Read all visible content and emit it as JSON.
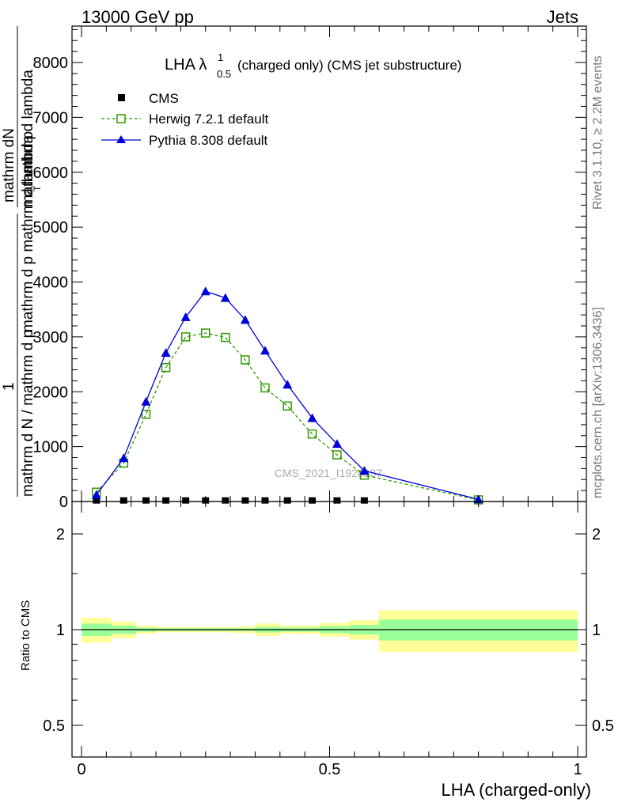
{
  "header": {
    "left": "13000 GeV pp",
    "right": "Jets"
  },
  "side": {
    "rivet": "Rivet 3.1.10, ≥ 2.2M events",
    "mcplots": "mcplots.cern.ch [arXiv:1306.3436]"
  },
  "watermark": "CMS_2021_I1920187",
  "colors": {
    "cms": "#000000",
    "herwig": "#339900",
    "pythia": "#0000dd",
    "band_inner": "#99ff99",
    "band_outer": "#ffff99"
  },
  "chart_data": [
    {
      "type": "line",
      "title_main": "LHA λ",
      "title_sup": "1",
      "title_sub": "0.5",
      "title_rest": "(charged only) (CMS jet substructure)",
      "ylabel_top_num": "mathrm dN",
      "ylabel_top_den": "mathrm d p_T mathrm d lambda",
      "ylabel_top_den_prefix": "mathrm d p",
      "ylabel_top_den_sub": "T",
      "ylabel_top_den_suffix": "mathrm d lambda",
      "ylabel_one": "1",
      "ylabel_bottom": "mathrm d N / mathrm d p mathrm d p mathrm d lambda",
      "ylabel_bottom_a": "mathrm d N / mathrm d p",
      "ylabel_bottom_b": "mathrm d p mathrm d lambda",
      "ylim": [
        0,
        8700
      ],
      "xlim": [
        -0.02,
        1.0
      ],
      "yticks": [
        0,
        1000,
        2000,
        3000,
        4000,
        5000,
        6000,
        7000,
        8000
      ],
      "yticklabels": [
        "0",
        "1000",
        "2000",
        "3000",
        "4000",
        "5000",
        "6000",
        "7000",
        "8000"
      ],
      "legend_position": "top-left",
      "series": [
        {
          "name": "CMS",
          "x": [
            0.03,
            0.085,
            0.13,
            0.17,
            0.21,
            0.25,
            0.29,
            0.33,
            0.37,
            0.415,
            0.465,
            0.515,
            0.57
          ],
          "y": [
            5,
            5,
            5,
            5,
            5,
            5,
            5,
            5,
            5,
            5,
            5,
            5,
            5
          ]
        },
        {
          "name": "Herwig 7.2.1 default",
          "x": [
            0.03,
            0.085,
            0.13,
            0.17,
            0.21,
            0.25,
            0.29,
            0.33,
            0.37,
            0.415,
            0.465,
            0.515,
            0.57,
            0.8
          ],
          "y": [
            170,
            700,
            1590,
            2440,
            3000,
            3070,
            2990,
            2580,
            2070,
            1740,
            1230,
            850,
            480,
            30
          ]
        },
        {
          "name": "Pythia 8.308 default",
          "x": [
            0.03,
            0.085,
            0.13,
            0.17,
            0.21,
            0.25,
            0.29,
            0.33,
            0.37,
            0.415,
            0.465,
            0.515,
            0.57,
            0.8
          ],
          "y": [
            120,
            790,
            1820,
            2710,
            3360,
            3830,
            3710,
            3310,
            2750,
            2130,
            1520,
            1050,
            560,
            40
          ]
        }
      ]
    },
    {
      "type": "area",
      "ylabel": "Ratio to CMS",
      "xlabel": "LHA (charged-only)",
      "log_y": true,
      "ylim": [
        0.4,
        2.4
      ],
      "yticks": [
        0.5,
        1,
        2
      ],
      "yticklabels": [
        "0.5",
        "1",
        "2"
      ],
      "xticks": [
        0,
        0.5,
        1
      ],
      "xticklabels": [
        "0",
        "0.5",
        "1"
      ],
      "bins": [
        {
          "x0": 0.0,
          "x1": 0.06,
          "inner": [
            0.955,
            1.045
          ],
          "outer": [
            0.91,
            1.09
          ]
        },
        {
          "x0": 0.06,
          "x1": 0.11,
          "inner": [
            0.97,
            1.03
          ],
          "outer": [
            0.94,
            1.06
          ]
        },
        {
          "x0": 0.11,
          "x1": 0.15,
          "inner": [
            0.985,
            1.015
          ],
          "outer": [
            0.97,
            1.03
          ]
        },
        {
          "x0": 0.15,
          "x1": 0.19,
          "inner": [
            0.99,
            1.01
          ],
          "outer": [
            0.98,
            1.02
          ]
        },
        {
          "x0": 0.19,
          "x1": 0.23,
          "inner": [
            0.99,
            1.01
          ],
          "outer": [
            0.98,
            1.02
          ]
        },
        {
          "x0": 0.23,
          "x1": 0.27,
          "inner": [
            0.99,
            1.01
          ],
          "outer": [
            0.98,
            1.02
          ]
        },
        {
          "x0": 0.27,
          "x1": 0.31,
          "inner": [
            0.99,
            1.01
          ],
          "outer": [
            0.98,
            1.02
          ]
        },
        {
          "x0": 0.31,
          "x1": 0.35,
          "inner": [
            0.99,
            1.01
          ],
          "outer": [
            0.975,
            1.025
          ]
        },
        {
          "x0": 0.35,
          "x1": 0.4,
          "inner": [
            0.98,
            1.02
          ],
          "outer": [
            0.955,
            1.045
          ]
        },
        {
          "x0": 0.4,
          "x1": 0.43,
          "inner": [
            0.985,
            1.015
          ],
          "outer": [
            0.97,
            1.03
          ]
        },
        {
          "x0": 0.43,
          "x1": 0.48,
          "inner": [
            0.985,
            1.015
          ],
          "outer": [
            0.97,
            1.03
          ]
        },
        {
          "x0": 0.48,
          "x1": 0.54,
          "inner": [
            0.975,
            1.025
          ],
          "outer": [
            0.95,
            1.05
          ]
        },
        {
          "x0": 0.54,
          "x1": 0.6,
          "inner": [
            0.965,
            1.035
          ],
          "outer": [
            0.93,
            1.07
          ]
        },
        {
          "x0": 0.6,
          "x1": 1.0,
          "inner": [
            0.925,
            1.075
          ],
          "outer": [
            0.85,
            1.15
          ]
        }
      ]
    }
  ]
}
